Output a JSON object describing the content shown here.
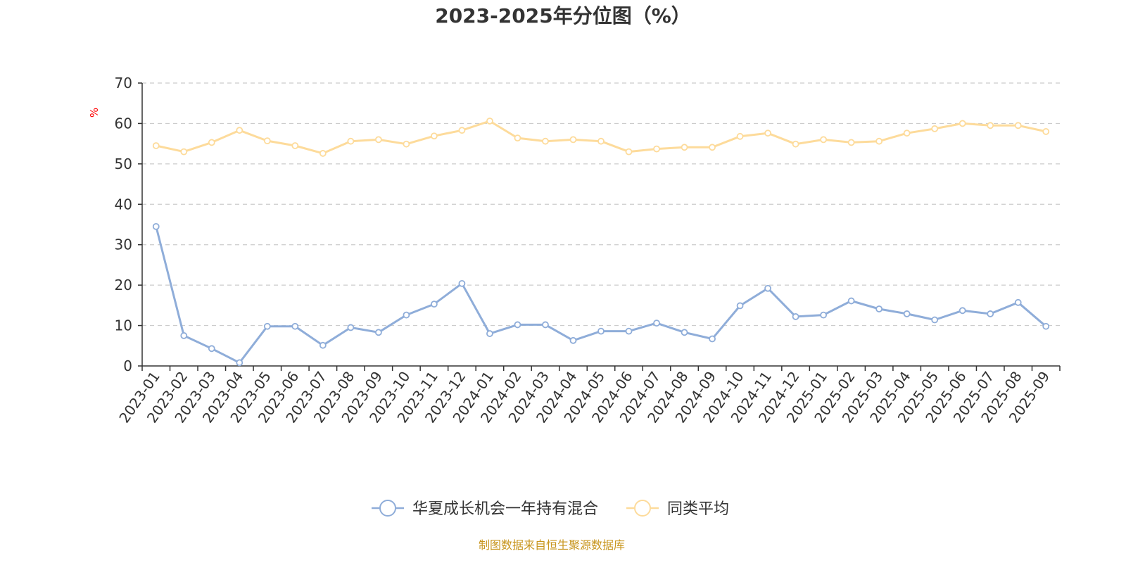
{
  "chart_data": {
    "type": "line",
    "title": "2023-2025年分位图（%）",
    "ylabel": "%",
    "ylim": [
      0,
      70
    ],
    "yticks": [
      0,
      10,
      20,
      30,
      40,
      50,
      60,
      70
    ],
    "grid": true,
    "legend_position": "bottom-center",
    "categories": [
      "2023-01",
      "2023-02",
      "2023-03",
      "2023-04",
      "2023-05",
      "2023-06",
      "2023-07",
      "2023-08",
      "2023-09",
      "2023-10",
      "2023-11",
      "2023-12",
      "2024-01",
      "2024-02",
      "2024-03",
      "2024-04",
      "2024-05",
      "2024-06",
      "2024-07",
      "2024-08",
      "2024-09",
      "2024-10",
      "2024-11",
      "2024-12",
      "2025-01",
      "2025-02",
      "2025-03",
      "2025-04",
      "2025-05",
      "2025-06",
      "2025-07",
      "2025-08",
      "2025-09"
    ],
    "series": [
      {
        "name": "华夏成长机会一年持有混合",
        "color": "#8fadd9",
        "values": [
          34.5,
          7.5,
          4.3,
          0.8,
          9.8,
          9.8,
          5.1,
          9.5,
          8.3,
          12.6,
          15.3,
          20.4,
          8.0,
          10.2,
          10.2,
          6.3,
          8.6,
          8.6,
          10.6,
          8.3,
          6.7,
          14.9,
          19.2,
          12.2,
          12.6,
          16.1,
          14.1,
          12.9,
          11.4,
          13.7,
          12.9,
          15.7,
          9.8
        ]
      },
      {
        "name": "同类平均",
        "color": "#fddb9b",
        "values": [
          54.5,
          53.0,
          55.3,
          58.3,
          55.7,
          54.5,
          52.6,
          55.6,
          56.0,
          54.9,
          56.9,
          58.3,
          60.6,
          56.4,
          55.6,
          56.0,
          55.6,
          53.0,
          53.7,
          54.1,
          54.1,
          56.8,
          57.6,
          54.9,
          56.0,
          55.3,
          55.6,
          57.6,
          58.7,
          60.0,
          59.5,
          59.5,
          58.0
        ]
      }
    ]
  },
  "source_text": "制图数据来自恒生聚源数据库"
}
